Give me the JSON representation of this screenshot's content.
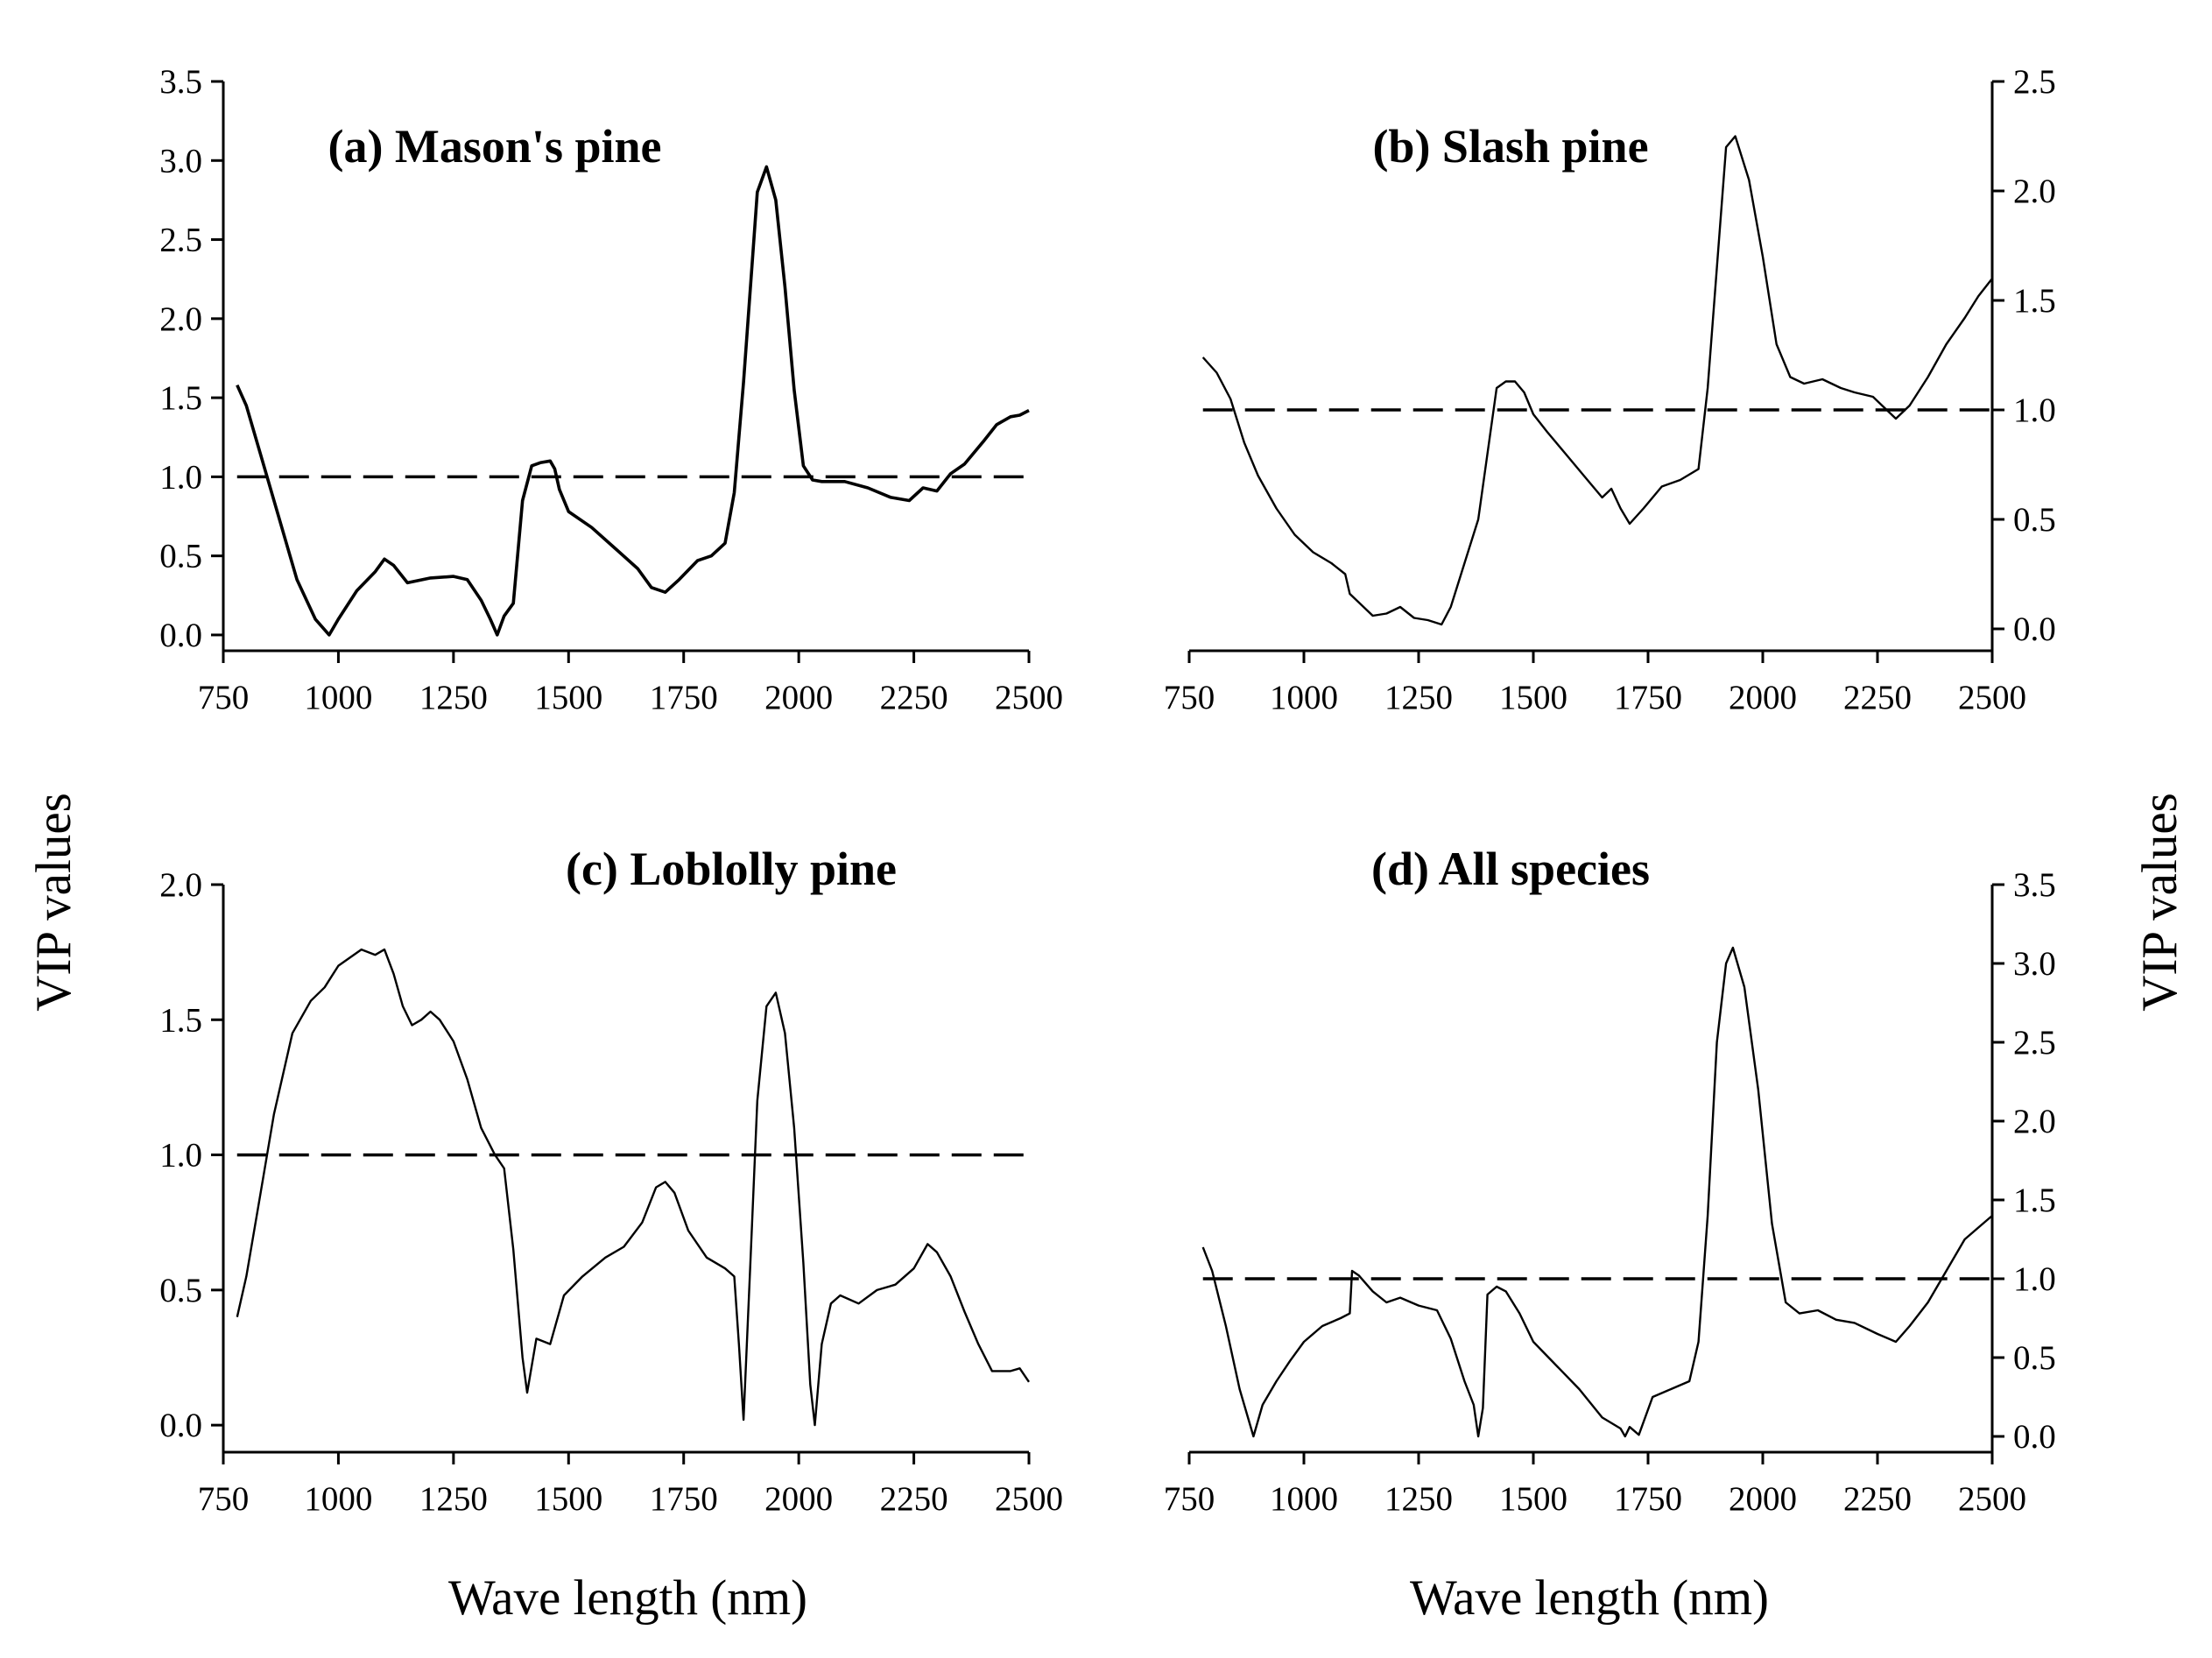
{
  "figure": {
    "shared_xlabel": "Wave length (nm)",
    "shared_ylabel": "VIP values",
    "line_color": "#000000",
    "background": "#ffffff"
  },
  "chart_data": [
    {
      "type": "line",
      "title": "(a) Mason's pine",
      "xlabel": "",
      "ylabel": "",
      "xlim": [
        750,
        2500
      ],
      "ylim": [
        -0.1,
        3.5
      ],
      "xticks": [
        "750",
        "1000",
        "1250",
        "1500",
        "1750",
        "2000",
        "2250",
        "2500"
      ],
      "yticks": [
        "0.0",
        "0.5",
        "1.0",
        "1.5",
        "2.0",
        "2.5",
        "3.0",
        "3.5"
      ],
      "threshold": 1.0,
      "grid": false,
      "series": [
        {
          "name": "VIP",
          "x": [
            780,
            800,
            830,
            870,
            910,
            950,
            980,
            1000,
            1040,
            1080,
            1100,
            1120,
            1150,
            1200,
            1250,
            1280,
            1310,
            1330,
            1345,
            1360,
            1380,
            1400,
            1420,
            1440,
            1460,
            1470,
            1480,
            1500,
            1550,
            1600,
            1650,
            1680,
            1710,
            1740,
            1780,
            1810,
            1840,
            1860,
            1880,
            1900,
            1910,
            1930,
            1950,
            1970,
            1990,
            2010,
            2030,
            2050,
            2100,
            2150,
            2200,
            2240,
            2270,
            2300,
            2330,
            2360,
            2400,
            2430,
            2460,
            2480,
            2500
          ],
          "values": [
            1.58,
            1.45,
            1.15,
            0.75,
            0.35,
            0.1,
            0.0,
            0.1,
            0.28,
            0.4,
            0.48,
            0.44,
            0.33,
            0.36,
            0.37,
            0.35,
            0.22,
            0.1,
            0.0,
            0.12,
            0.2,
            0.85,
            1.07,
            1.09,
            1.1,
            1.05,
            0.92,
            0.78,
            0.68,
            0.55,
            0.42,
            0.3,
            0.27,
            0.35,
            0.47,
            0.5,
            0.58,
            0.9,
            1.6,
            2.4,
            2.8,
            2.96,
            2.75,
            2.2,
            1.55,
            1.07,
            0.98,
            0.97,
            0.97,
            0.93,
            0.87,
            0.85,
            0.93,
            0.91,
            1.02,
            1.08,
            1.22,
            1.33,
            1.38,
            1.39,
            1.42
          ]
        }
      ]
    },
    {
      "type": "line",
      "title": "(b) Slash pine",
      "xlabel": "",
      "ylabel": "",
      "yaxis_side": "right",
      "xlim": [
        750,
        2500
      ],
      "ylim": [
        -0.1,
        2.5
      ],
      "xticks": [
        "750",
        "1000",
        "1250",
        "1500",
        "1750",
        "2000",
        "2250",
        "2500"
      ],
      "yticks": [
        "0.0",
        "0.5",
        "1.0",
        "1.5",
        "2.0",
        "2.5"
      ],
      "threshold": 1.0,
      "grid": false,
      "series": [
        {
          "name": "VIP",
          "x": [
            780,
            810,
            840,
            870,
            900,
            940,
            980,
            1020,
            1060,
            1090,
            1100,
            1120,
            1150,
            1180,
            1210,
            1240,
            1270,
            1300,
            1320,
            1350,
            1380,
            1400,
            1420,
            1440,
            1460,
            1480,
            1500,
            1530,
            1570,
            1610,
            1650,
            1670,
            1690,
            1710,
            1740,
            1780,
            1820,
            1860,
            1880,
            1900,
            1920,
            1940,
            1970,
            2000,
            2030,
            2060,
            2090,
            2130,
            2170,
            2200,
            2240,
            2270,
            2290,
            2320,
            2360,
            2400,
            2440,
            2470,
            2500
          ],
          "values": [
            1.24,
            1.17,
            1.05,
            0.85,
            0.7,
            0.55,
            0.43,
            0.35,
            0.3,
            0.25,
            0.16,
            0.12,
            0.06,
            0.07,
            0.1,
            0.05,
            0.04,
            0.02,
            0.1,
            0.3,
            0.5,
            0.8,
            1.1,
            1.13,
            1.13,
            1.08,
            0.98,
            0.9,
            0.8,
            0.7,
            0.6,
            0.64,
            0.55,
            0.48,
            0.55,
            0.65,
            0.68,
            0.73,
            1.1,
            1.65,
            2.2,
            2.25,
            2.05,
            1.7,
            1.3,
            1.15,
            1.12,
            1.14,
            1.1,
            1.08,
            1.06,
            1.0,
            0.96,
            1.02,
            1.15,
            1.3,
            1.42,
            1.52,
            1.6
          ]
        }
      ]
    },
    {
      "type": "line",
      "title": "(c) Loblolly pine",
      "xlabel": "Wave length (nm)",
      "ylabel": "VIP values",
      "xlim": [
        750,
        2500
      ],
      "ylim": [
        -0.1,
        2.0
      ],
      "xticks": [
        "750",
        "1000",
        "1250",
        "1500",
        "1750",
        "2000",
        "2250",
        "2500"
      ],
      "yticks": [
        "0.0",
        "0.5",
        "1.0",
        "1.5",
        "2.0"
      ],
      "threshold": 1.0,
      "grid": false,
      "series": [
        {
          "name": "VIP",
          "x": [
            780,
            800,
            830,
            860,
            900,
            940,
            970,
            1000,
            1050,
            1080,
            1100,
            1120,
            1140,
            1160,
            1180,
            1200,
            1220,
            1250,
            1280,
            1310,
            1340,
            1360,
            1380,
            1400,
            1410,
            1430,
            1460,
            1490,
            1530,
            1580,
            1620,
            1660,
            1690,
            1710,
            1730,
            1760,
            1800,
            1840,
            1860,
            1870,
            1880,
            1895,
            1910,
            1930,
            1950,
            1970,
            1990,
            2010,
            2025,
            2035,
            2050,
            2070,
            2090,
            2130,
            2170,
            2210,
            2250,
            2280,
            2300,
            2330,
            2360,
            2390,
            2420,
            2460,
            2480,
            2500
          ],
          "values": [
            0.4,
            0.55,
            0.85,
            1.15,
            1.45,
            1.57,
            1.62,
            1.7,
            1.76,
            1.74,
            1.76,
            1.67,
            1.55,
            1.48,
            1.5,
            1.53,
            1.5,
            1.42,
            1.28,
            1.1,
            1.0,
            0.95,
            0.65,
            0.25,
            0.12,
            0.32,
            0.3,
            0.48,
            0.55,
            0.62,
            0.66,
            0.75,
            0.88,
            0.9,
            0.86,
            0.72,
            0.62,
            0.58,
            0.55,
            0.3,
            0.02,
            0.6,
            1.2,
            1.55,
            1.6,
            1.45,
            1.1,
            0.6,
            0.15,
            0.0,
            0.3,
            0.45,
            0.48,
            0.45,
            0.5,
            0.52,
            0.58,
            0.67,
            0.64,
            0.55,
            0.42,
            0.3,
            0.2,
            0.2,
            0.21,
            0.16
          ]
        }
      ]
    },
    {
      "type": "line",
      "title": "(d) All species",
      "xlabel": "Wave length (nm)",
      "ylabel": "VIP values",
      "yaxis_side": "right",
      "xlim": [
        750,
        2500
      ],
      "ylim": [
        -0.1,
        3.5
      ],
      "xticks": [
        "750",
        "1000",
        "1250",
        "1500",
        "1750",
        "2000",
        "2250",
        "2500"
      ],
      "yticks": [
        "0.0",
        "0.5",
        "1.0",
        "1.5",
        "2.0",
        "2.5",
        "3.0",
        "3.5"
      ],
      "threshold": 1.0,
      "grid": false,
      "series": [
        {
          "name": "VIP",
          "x": [
            780,
            800,
            830,
            860,
            890,
            910,
            940,
            970,
            1000,
            1040,
            1080,
            1100,
            1105,
            1120,
            1150,
            1180,
            1210,
            1250,
            1290,
            1320,
            1350,
            1370,
            1380,
            1390,
            1400,
            1420,
            1440,
            1470,
            1500,
            1550,
            1600,
            1650,
            1690,
            1700,
            1710,
            1730,
            1760,
            1800,
            1840,
            1860,
            1880,
            1900,
            1920,
            1935,
            1960,
            1990,
            2020,
            2050,
            2080,
            2120,
            2160,
            2200,
            2250,
            2290,
            2320,
            2360,
            2400,
            2440,
            2480,
            2500
          ],
          "values": [
            1.2,
            1.05,
            0.7,
            0.3,
            0.0,
            0.2,
            0.35,
            0.48,
            0.6,
            0.7,
            0.75,
            0.78,
            1.05,
            1.02,
            0.92,
            0.85,
            0.88,
            0.83,
            0.8,
            0.62,
            0.35,
            0.2,
            0.0,
            0.18,
            0.9,
            0.95,
            0.92,
            0.78,
            0.6,
            0.45,
            0.3,
            0.12,
            0.05,
            0.0,
            0.06,
            0.01,
            0.25,
            0.3,
            0.35,
            0.6,
            1.4,
            2.5,
            3.0,
            3.1,
            2.85,
            2.2,
            1.35,
            0.85,
            0.78,
            0.8,
            0.74,
            0.72,
            0.65,
            0.6,
            0.7,
            0.85,
            1.05,
            1.25,
            1.35,
            1.4
          ]
        }
      ]
    }
  ]
}
